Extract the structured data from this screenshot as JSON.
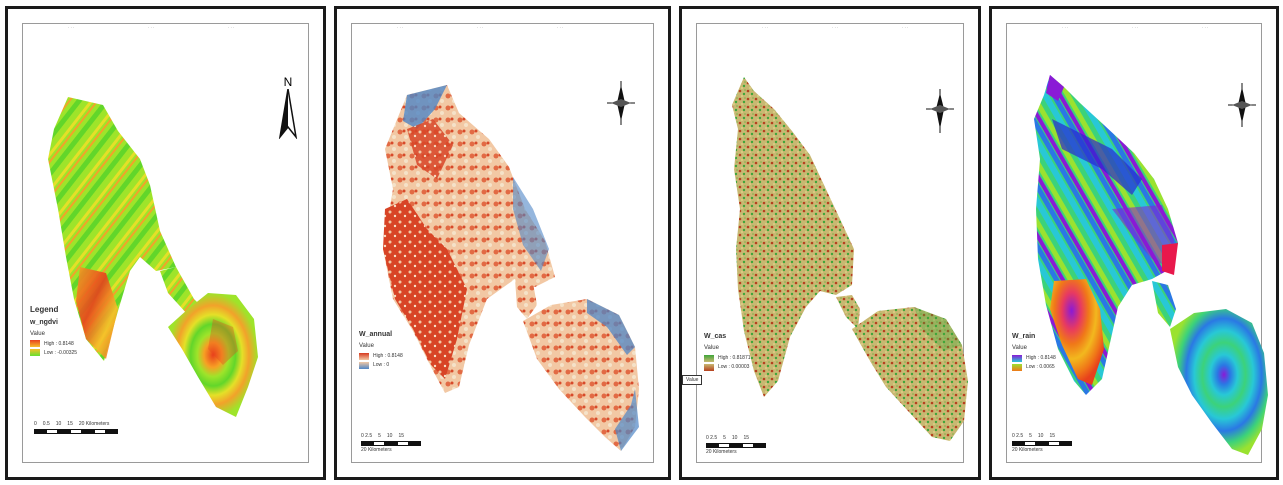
{
  "panels": [
    {
      "id": "p1",
      "legend_title": "Legend",
      "field_name": "w_ngdvi",
      "value_label": "Value",
      "high_label": "High : 0.8148",
      "low_label": "Low : -0.00325",
      "high_color": "#e8401c",
      "low_color": "#66e030",
      "scale_labels": [
        "0",
        "0.5",
        "10",
        "15",
        "20 Kilometers"
      ],
      "north_label": "N",
      "north_icon": "north-arrow-icon"
    },
    {
      "id": "p2",
      "field_name": "W_annual",
      "value_label": "Value",
      "high_label": "High : 0.8148",
      "low_label": "Low : 0",
      "high_color": "#d63a20",
      "low_color": "#4f86c6",
      "scale_labels": [
        "0 2.5",
        "5",
        "10",
        "15",
        "20 Kilometers"
      ],
      "north_icon": "compass-rose-icon"
    },
    {
      "id": "p3",
      "field_name": "W_cas",
      "value_label": "Value",
      "high_label": "High : 0.81871",
      "low_label": "Low : 0.00003",
      "high_color": "#3ea63a",
      "low_color": "#b6401e",
      "callout_text": "Value",
      "scale_labels": [
        "0 2.5",
        "5",
        "10",
        "15",
        "20 Kilometers"
      ],
      "north_icon": "compass-rose-icon"
    },
    {
      "id": "p4",
      "field_name": "W_rain",
      "value_label": "Value",
      "high_label": "High : 0.8148",
      "low_label": "Low : 0.0065",
      "high_color": "#8a1ad6",
      "low_color": "#f07818",
      "scale_labels": [
        "0 2.5",
        "5",
        "10",
        "15",
        "20 Kilometers"
      ],
      "north_icon": "compass-rose-icon"
    }
  ]
}
